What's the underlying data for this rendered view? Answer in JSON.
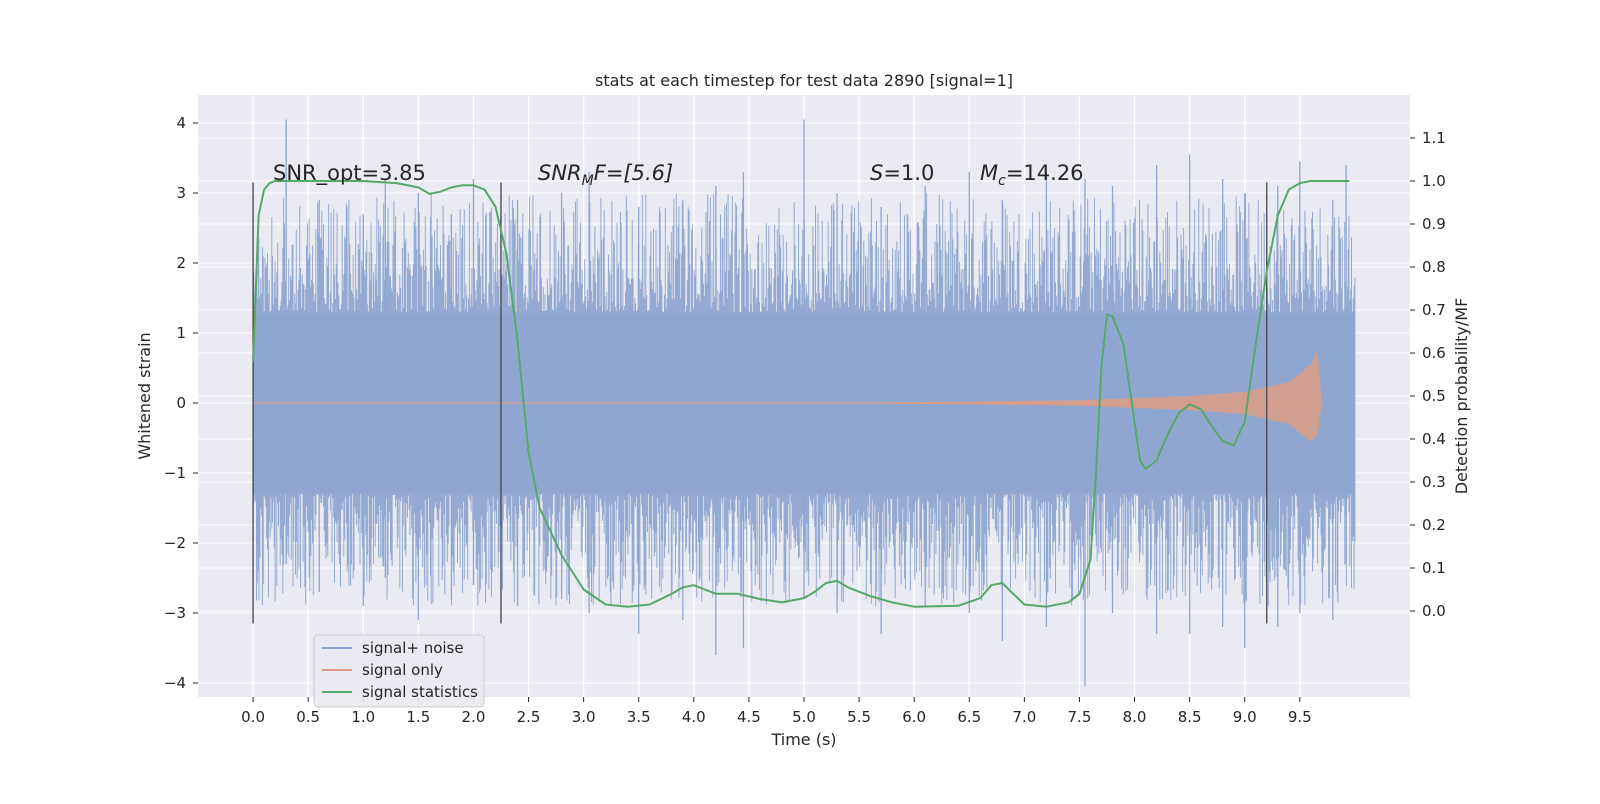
{
  "chart_data": {
    "type": "line",
    "title": "stats at each timestep for test data 2890 [signal=1]",
    "xlabel": "Time (s)",
    "ylabel_left": "Whitened strain",
    "ylabel_right": "Detection probability/MF",
    "xlim": [
      -0.5,
      10.5
    ],
    "ylim_left": [
      -4.2,
      4.4
    ],
    "ylim_right": [
      -0.2,
      1.2
    ],
    "xticks": [
      "0.0",
      "0.5",
      "1.0",
      "1.5",
      "2.0",
      "2.5",
      "3.0",
      "3.5",
      "4.0",
      "4.5",
      "5.0",
      "5.5",
      "6.0",
      "6.5",
      "7.0",
      "7.5",
      "8.0",
      "8.5",
      "9.0",
      "9.5"
    ],
    "yticks_left": [
      "4",
      "3",
      "2",
      "1",
      "0",
      "−1",
      "−2",
      "−3",
      "−4"
    ],
    "yticks_right": [
      "1.1",
      "1.0",
      "0.9",
      "0.8",
      "0.7",
      "0.6",
      "0.5",
      "0.4",
      "0.3",
      "0.2",
      "0.1",
      "0.0"
    ],
    "grid": true,
    "legend_position": "lower-left",
    "background_color": "#eaeaf2",
    "annotations": {
      "snr_opt": "SNR_opt=3.85",
      "snr_mf_main": "SNR",
      "snr_mf_sub": "M",
      "snr_mf_tail": "F=[5.6]",
      "s_main": "S",
      "s_tail": "=1.0",
      "mc_main": "M",
      "mc_sub": "c",
      "mc_tail": "=14.26"
    },
    "vertical_markers": [
      0.0,
      2.25,
      9.2
    ],
    "vertical_marker_range": [
      -3.15,
      3.15
    ],
    "series": [
      {
        "name": "signal+ noise",
        "color": "#8fa6d0",
        "x_range": [
          0.0,
          10.0
        ],
        "dense_band": [
          -1.28,
          1.28
        ],
        "spikes": [
          [
            0.05,
            2.35,
            -2.4
          ],
          [
            0.3,
            4.05,
            -2.3
          ],
          [
            0.6,
            2.9,
            -2.7
          ],
          [
            1.0,
            2.7,
            -2.9
          ],
          [
            1.2,
            3.2,
            -2.5
          ],
          [
            1.5,
            3.0,
            -3.1
          ],
          [
            1.8,
            2.7,
            -2.8
          ],
          [
            2.0,
            3.2,
            -2.6
          ],
          [
            2.4,
            2.9,
            -2.9
          ],
          [
            2.8,
            3.0,
            -2.8
          ],
          [
            3.05,
            3.3,
            -3.0
          ],
          [
            3.5,
            2.8,
            -3.3
          ],
          [
            3.9,
            2.9,
            -3.1
          ],
          [
            4.2,
            3.1,
            -3.6
          ],
          [
            4.45,
            3.3,
            -3.5
          ],
          [
            5.0,
            4.05,
            -2.8
          ],
          [
            5.3,
            3.0,
            -3.0
          ],
          [
            5.7,
            2.8,
            -3.3
          ],
          [
            6.1,
            3.1,
            -2.9
          ],
          [
            6.5,
            3.3,
            -3.0
          ],
          [
            6.8,
            2.9,
            -3.4
          ],
          [
            7.2,
            3.3,
            -3.2
          ],
          [
            7.55,
            3.2,
            -4.05
          ],
          [
            7.8,
            3.1,
            -3.0
          ],
          [
            8.2,
            3.4,
            -3.3
          ],
          [
            8.5,
            3.55,
            -3.3
          ],
          [
            8.8,
            3.2,
            -3.2
          ],
          [
            9.0,
            3.0,
            -3.5
          ],
          [
            9.3,
            3.1,
            -3.2
          ],
          [
            9.5,
            3.45,
            -3.0
          ],
          [
            9.8,
            2.9,
            -3.1
          ],
          [
            9.92,
            3.4,
            -2.3
          ]
        ]
      },
      {
        "name": "signal only",
        "color": "#dd9d84",
        "envelope": [
          [
            0.0,
            0.0
          ],
          [
            5.5,
            0.005
          ],
          [
            6.5,
            0.02
          ],
          [
            7.5,
            0.04
          ],
          [
            8.5,
            0.1
          ],
          [
            9.0,
            0.16
          ],
          [
            9.4,
            0.3
          ],
          [
            9.6,
            0.55
          ],
          [
            9.66,
            0.75
          ],
          [
            9.7,
            0.0
          ]
        ]
      },
      {
        "name": "signal statistics",
        "color": "#55a868",
        "x": [
          0.0,
          0.05,
          0.1,
          0.15,
          0.2,
          0.3,
          0.5,
          1.0,
          1.3,
          1.5,
          1.6,
          1.7,
          1.8,
          1.9,
          2.0,
          2.1,
          2.2,
          2.3,
          2.4,
          2.5,
          2.6,
          2.8,
          3.0,
          3.2,
          3.4,
          3.6,
          3.8,
          3.9,
          4.0,
          4.1,
          4.2,
          4.4,
          4.6,
          4.8,
          5.0,
          5.1,
          5.2,
          5.3,
          5.4,
          5.6,
          5.8,
          6.0,
          6.4,
          6.6,
          6.7,
          6.8,
          6.9,
          7.0,
          7.2,
          7.4,
          7.5,
          7.6,
          7.65,
          7.7,
          7.75,
          7.8,
          7.9,
          8.0,
          8.05,
          8.1,
          8.2,
          8.3,
          8.4,
          8.5,
          8.6,
          8.7,
          8.8,
          8.9,
          9.0,
          9.1,
          9.2,
          9.3,
          9.4,
          9.5,
          9.6,
          9.7,
          9.8,
          9.9,
          9.95
        ],
        "y": [
          0.58,
          0.92,
          0.98,
          0.995,
          1.0,
          1.0,
          1.0,
          1.0,
          0.995,
          0.985,
          0.97,
          0.975,
          0.985,
          0.99,
          0.99,
          0.98,
          0.94,
          0.83,
          0.63,
          0.37,
          0.24,
          0.13,
          0.05,
          0.015,
          0.01,
          0.015,
          0.04,
          0.055,
          0.06,
          0.05,
          0.04,
          0.04,
          0.028,
          0.02,
          0.03,
          0.045,
          0.065,
          0.07,
          0.055,
          0.035,
          0.02,
          0.01,
          0.012,
          0.03,
          0.06,
          0.065,
          0.04,
          0.015,
          0.01,
          0.02,
          0.04,
          0.12,
          0.32,
          0.57,
          0.69,
          0.685,
          0.62,
          0.44,
          0.35,
          0.33,
          0.35,
          0.41,
          0.46,
          0.48,
          0.47,
          0.43,
          0.395,
          0.385,
          0.44,
          0.62,
          0.79,
          0.92,
          0.98,
          0.995,
          1.0,
          1.0,
          1.0,
          1.0,
          1.0
        ]
      }
    ]
  }
}
